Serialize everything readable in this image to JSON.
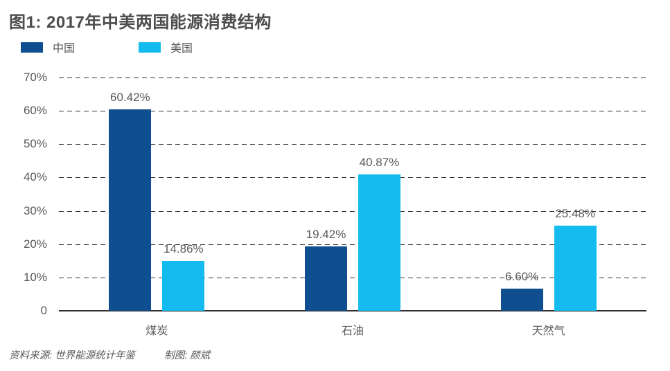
{
  "chart_data": {
    "type": "bar",
    "title": "图1: 2017年中美两国能源消费结构",
    "categories": [
      "煤炭",
      "石油",
      "天然气"
    ],
    "category_keys": [
      "coal",
      "oil",
      "natural-gas"
    ],
    "series": [
      {
        "name": "中国",
        "key": "china",
        "color": "#104f8f",
        "values": [
          60.42,
          19.42,
          6.6
        ],
        "labels": [
          "60.42%",
          "19.42%",
          "6.60%"
        ]
      },
      {
        "name": "美国",
        "key": "usa",
        "color": "#14bbee",
        "values": [
          14.86,
          40.87,
          25.48
        ],
        "labels": [
          "14.86%",
          "40.87%",
          "25.48%"
        ]
      }
    ],
    "ylim": [
      0,
      70
    ],
    "yticks": [
      {
        "value": 70,
        "label": "70%"
      },
      {
        "value": 60,
        "label": "60%"
      },
      {
        "value": 50,
        "label": "50%"
      },
      {
        "value": 40,
        "label": "40%"
      },
      {
        "value": 30,
        "label": "30%"
      },
      {
        "value": 20,
        "label": "20%"
      },
      {
        "value": 10,
        "label": "10%"
      },
      {
        "value": 0,
        "label": "0"
      }
    ],
    "grid": "horizontal-dashed",
    "legend_position": "top-left"
  },
  "footer": {
    "source": "资料来源: 世界能源统计年鉴",
    "credit": "制图: 颜斌"
  }
}
